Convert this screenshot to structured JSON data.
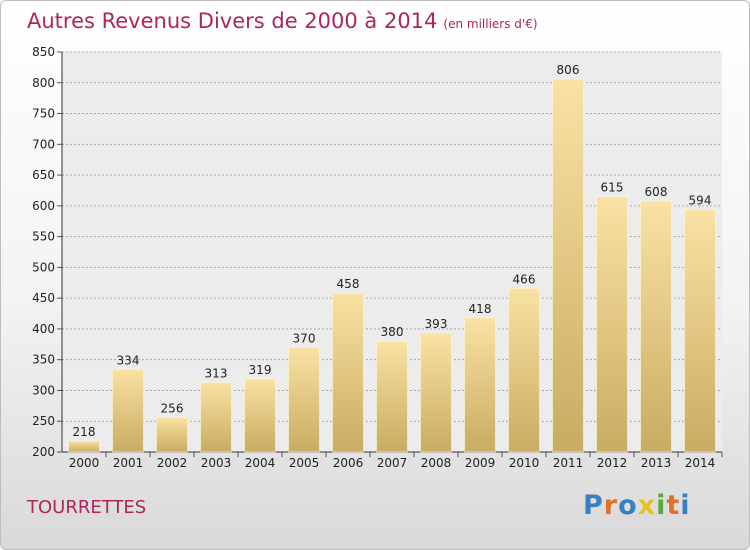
{
  "title": "Autres Revenus Divers de 2000 à 2014",
  "subtitle": "(en milliers d'€)",
  "commune": "TOURRETTES",
  "logo_letters": [
    {
      "ch": "P",
      "color": "#3a7fc1"
    },
    {
      "ch": "r",
      "color": "#e0702a"
    },
    {
      "ch": "o",
      "color": "#3a7fc1"
    },
    {
      "ch": "x",
      "color": "#e9c21d"
    },
    {
      "ch": "i",
      "color": "#5aaa3a"
    },
    {
      "ch": "t",
      "color": "#e0702a"
    },
    {
      "ch": "i",
      "color": "#3a7fc1"
    }
  ],
  "colors": {
    "title": "#b0245c",
    "bar_light": "#f9e2a3",
    "bar_dark": "#c9ac62",
    "grid": "#9a9a9a"
  },
  "chart_data": {
    "type": "bar",
    "categories": [
      "2000",
      "2001",
      "2002",
      "2003",
      "2004",
      "2005",
      "2006",
      "2007",
      "2008",
      "2009",
      "2010",
      "2011",
      "2012",
      "2013",
      "2014"
    ],
    "values": [
      218,
      334,
      256,
      313,
      319,
      370,
      458,
      380,
      393,
      418,
      466,
      806,
      615,
      608,
      594
    ],
    "ylim": [
      200,
      850
    ],
    "yticks": [
      200,
      250,
      300,
      350,
      400,
      450,
      500,
      550,
      600,
      650,
      700,
      750,
      800,
      850
    ],
    "grid": true,
    "legend": "none"
  }
}
